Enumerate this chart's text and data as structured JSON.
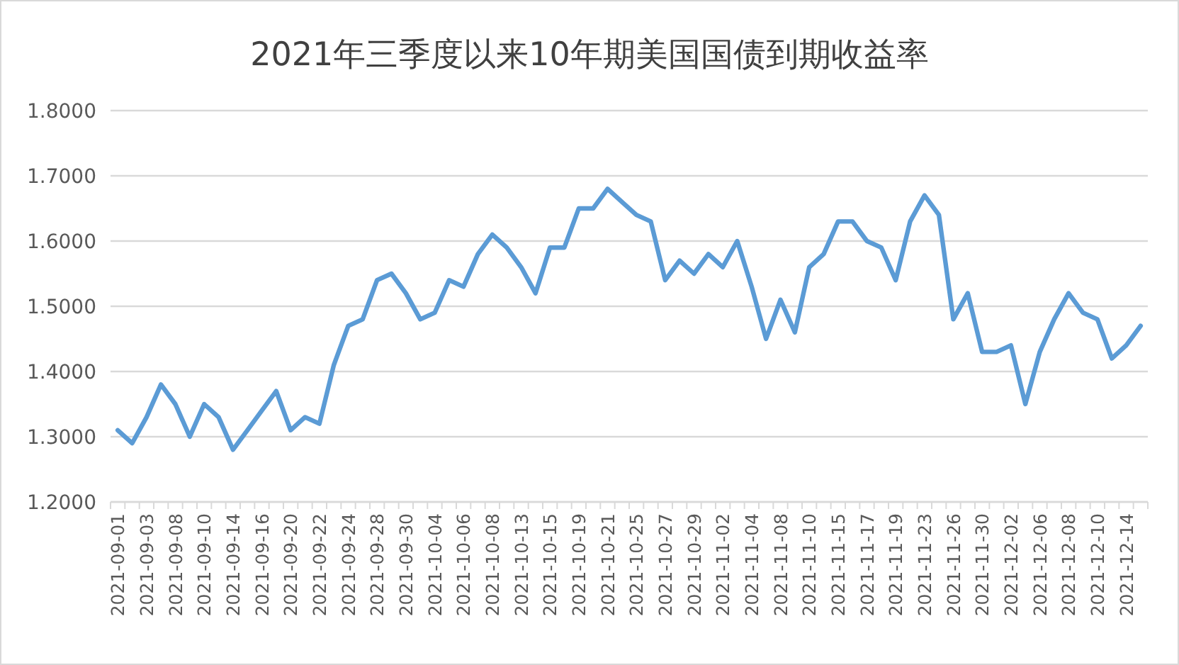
{
  "chart_data": {
    "type": "line",
    "title": "2021年三季度以来10年期美国国债到期收益率",
    "categories": [
      "2021-09-01",
      null,
      "2021-09-03",
      null,
      "2021-09-08",
      null,
      "2021-09-10",
      null,
      "2021-09-14",
      null,
      "2021-09-16",
      null,
      "2021-09-20",
      null,
      "2021-09-22",
      null,
      "2021-09-24",
      null,
      "2021-09-28",
      null,
      "2021-09-30",
      null,
      "2021-10-04",
      null,
      "2021-10-06",
      null,
      "2021-10-08",
      null,
      "2021-10-13",
      null,
      "2021-10-15",
      null,
      "2021-10-19",
      null,
      "2021-10-21",
      null,
      "2021-10-25",
      null,
      "2021-10-27",
      null,
      "2021-10-29",
      null,
      "2021-11-02",
      null,
      "2021-11-04",
      null,
      "2021-11-08",
      null,
      "2021-11-10",
      null,
      "2021-11-15",
      null,
      "2021-11-17",
      null,
      "2021-11-19",
      null,
      "2021-11-23",
      null,
      "2021-11-26",
      null,
      "2021-11-30",
      null,
      "2021-12-02",
      null,
      "2021-12-06",
      null,
      "2021-12-08",
      null,
      "2021-12-10",
      null,
      "2021-12-14",
      null
    ],
    "series": [
      {
        "color": "#5b9bd5",
        "values": [
          1.31,
          1.29,
          1.33,
          1.38,
          1.35,
          1.3,
          1.35,
          1.33,
          1.28,
          1.31,
          1.34,
          1.37,
          1.31,
          1.33,
          1.32,
          1.41,
          1.47,
          1.48,
          1.54,
          1.55,
          1.52,
          1.48,
          1.49,
          1.54,
          1.53,
          1.58,
          1.61,
          1.59,
          1.56,
          1.52,
          1.59,
          1.59,
          1.65,
          1.65,
          1.68,
          1.66,
          1.64,
          1.63,
          1.54,
          1.57,
          1.55,
          1.58,
          1.56,
          1.6,
          1.53,
          1.45,
          1.51,
          1.46,
          1.56,
          1.58,
          1.63,
          1.63,
          1.6,
          1.59,
          1.54,
          1.63,
          1.67,
          1.64,
          1.48,
          1.52,
          1.43,
          1.43,
          1.44,
          1.35,
          1.43,
          1.48,
          1.52,
          1.49,
          1.48,
          1.42,
          1.44,
          1.47
        ]
      }
    ],
    "ylim": [
      1.2,
      1.8
    ],
    "yticks": [
      {
        "value": 1.2,
        "label": "1.2000"
      },
      {
        "value": 1.3,
        "label": "1.3000"
      },
      {
        "value": 1.4,
        "label": "1.4000"
      },
      {
        "value": 1.5,
        "label": "1.5000"
      },
      {
        "value": 1.6,
        "label": "1.6000"
      },
      {
        "value": 1.7,
        "label": "1.7000"
      },
      {
        "value": 1.8,
        "label": "1.8000"
      }
    ],
    "grid": "y",
    "marker": "none",
    "line_style": "solid"
  }
}
